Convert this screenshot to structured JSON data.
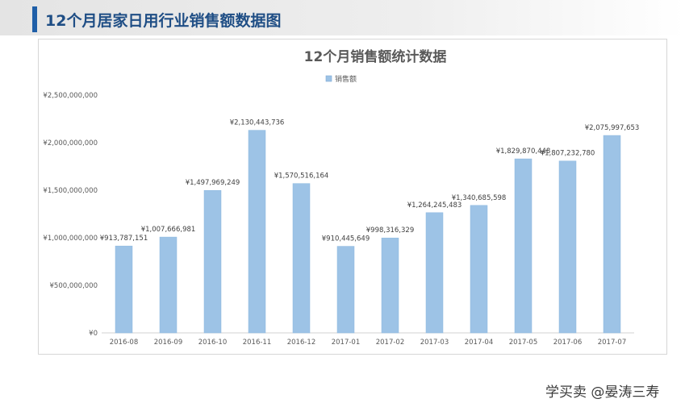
{
  "page": {
    "title": "12个月居家日用行业销售额数据图"
  },
  "watermark": "学买卖 @晏涛三寿",
  "chart_data": {
    "type": "bar",
    "title": "12个月销售额统计数据",
    "legend": {
      "position": "top",
      "entries": [
        "销售额"
      ]
    },
    "bar_color": "#9dc3e6",
    "categories": [
      "2016-08",
      "2016-09",
      "2016-10",
      "2016-11",
      "2016-12",
      "2017-01",
      "2017-02",
      "2017-03",
      "2017-04",
      "2017-05",
      "2017-06",
      "2017-07"
    ],
    "series": [
      {
        "name": "销售额",
        "values": [
          913787151,
          1007666981,
          1497969249,
          2130443736,
          1570516164,
          910445649,
          998316329,
          1264245483,
          1340685598,
          1829870448,
          1807232780,
          2075997653
        ],
        "labels": [
          "¥913,787,151",
          "¥1,007,666,981",
          "¥1,497,969,249",
          "¥2,130,443,736",
          "¥1,570,516,164",
          "¥910,445,649",
          "¥998,316,329",
          "¥1,264,245,483",
          "¥1,340,685,598",
          "¥1,829,870,448",
          "¥1,807,232,780",
          "¥2,075,997,653"
        ]
      }
    ],
    "ylim": [
      0,
      2500000000
    ],
    "yticks": [
      0,
      500000000,
      1000000000,
      1500000000,
      2000000000,
      2500000000
    ],
    "ytick_labels": [
      "¥0",
      "¥500,000,000",
      "¥1,000,000,000",
      "¥1,500,000,000",
      "¥2,000,000,000",
      "¥2,500,000,000"
    ],
    "grid": false,
    "xlabel": "",
    "ylabel": ""
  }
}
